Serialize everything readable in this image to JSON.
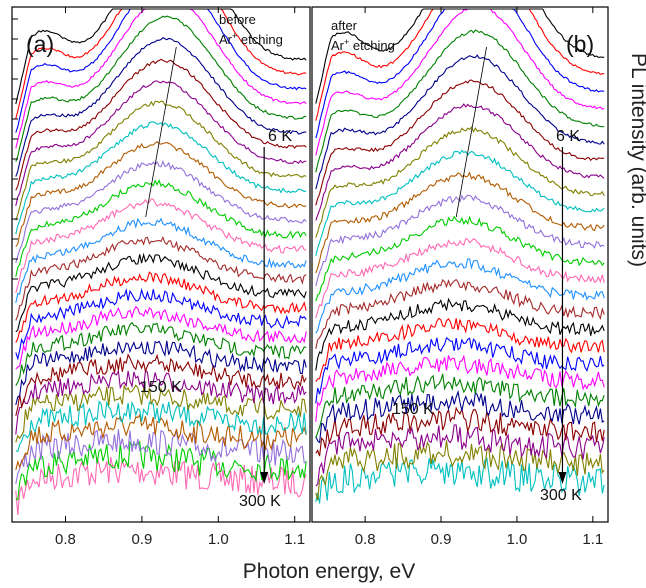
{
  "chart_data": {
    "type": "line",
    "xlabel": "Photon energy, eV",
    "ylabel": "PL intensity (arb. units)",
    "xlim": [
      0.73,
      1.12
    ],
    "xticks": [
      "0.8",
      "0.9",
      "1.0",
      "1.1"
    ],
    "panels": [
      {
        "panel_label": "(a)",
        "note_line1": "before",
        "note_line2": "Ar",
        "note_sup": "+",
        "note_line2_rest": " etching",
        "temp_high": "6 K",
        "temp_mid": "150 K",
        "temp_low": "300 K",
        "peak_energy": 0.94,
        "series_count": 30
      },
      {
        "panel_label": "(b)",
        "note_line1": "after",
        "note_line2": "Ar",
        "note_sup": "+",
        "note_line2_rest": " etching",
        "temp_high": "6 K",
        "temp_mid": "150 K",
        "temp_low": "300 K",
        "peak_energy": 0.955,
        "series_count": 26
      }
    ],
    "colors": [
      "#000000",
      "#ff0000",
      "#0000ff",
      "#ff00ff",
      "#008000",
      "#00008b",
      "#8b0000",
      "#8b008b",
      "#808000",
      "#00bfbf",
      "#b35a00",
      "#9370db",
      "#00cc00",
      "#ff69b4",
      "#1e90ff",
      "#a52a2a"
    ]
  }
}
